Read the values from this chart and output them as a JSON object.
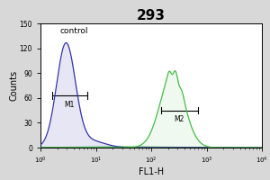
{
  "title": "293",
  "title_fontsize": 11,
  "title_fontweight": "bold",
  "xlabel": "FL1-H",
  "ylabel": "Counts",
  "xlabel_fontsize": 7,
  "ylabel_fontsize": 7,
  "xlim_log": [
    1.0,
    10000.0
  ],
  "ylim": [
    0,
    150
  ],
  "yticks": [
    0,
    30,
    60,
    90,
    120,
    150
  ],
  "outer_bg_color": "#d8d8d8",
  "plot_bg_color": "#ffffff",
  "control_label": "control",
  "control_color": "#3333aa",
  "sample_color": "#44bb44",
  "baseline_color": "#22aa22",
  "m1_label": "M1",
  "m2_label": "M2",
  "m1_x_start": 1.6,
  "m1_x_end": 7.0,
  "m1_y": 63,
  "m2_x_start": 150,
  "m2_x_end": 700,
  "m2_y": 45,
  "blue_mu_log": 0.46,
  "blue_sigma_log": 0.17,
  "blue_peak": 125,
  "green_mu_log": 2.38,
  "green_sigma_log": 0.22,
  "green_peak": 88
}
